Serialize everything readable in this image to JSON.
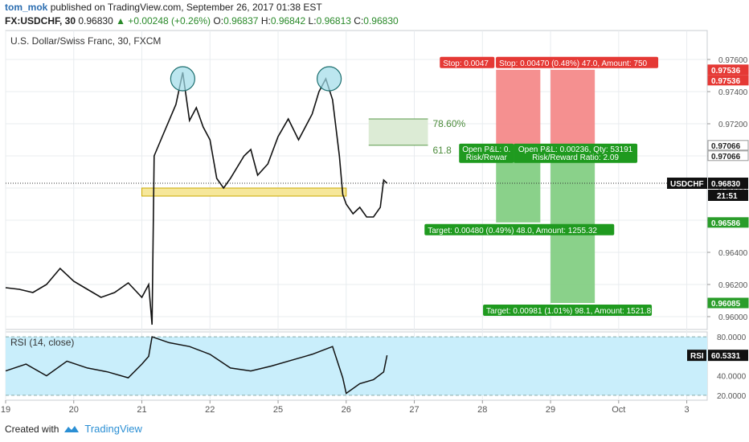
{
  "header": {
    "author": "tom_mok",
    "published_text": "published on TradingView.com, September 26, 2017 01:38 EST",
    "symbol": "FX:USDCHF, 30",
    "last": "0.96830",
    "change": "▲ +0.00248 (+0.26%)",
    "o_label": "O:",
    "o": "0.96837",
    "h_label": "H:",
    "h": "0.96842",
    "l_label": "L:",
    "l": "0.96813",
    "c_label": "C:",
    "c": "0.96830"
  },
  "footer": {
    "created_with": "Created with",
    "brand": "TradingView"
  },
  "chart_data": [
    {
      "type": "line",
      "title": "U.S. Dollar/Swiss Franc, 30, FXCM",
      "symbol_tag": "USDCHF",
      "last_price_label": "0.96830",
      "countdown": "21:51",
      "ylim": [
        0.9592,
        0.9778
      ],
      "y_ticks": [
        0.96,
        0.962,
        0.964,
        0.966,
        0.968,
        0.97,
        0.972,
        0.974,
        0.976
      ],
      "y_tick_labels": [
        "0.96000",
        "0.96200",
        "0.96400",
        "0.96600",
        "0.96800",
        "0.97000",
        "0.97200",
        "0.97400",
        "0.97600"
      ],
      "x_ticks": [
        0,
        1,
        2,
        3,
        4,
        5,
        6,
        7,
        8,
        9,
        10
      ],
      "x_tick_labels": [
        "19",
        "20",
        "21",
        "22",
        "25",
        "26",
        "27",
        "28",
        "29",
        "Oct",
        "3"
      ],
      "xlim": [
        0,
        10.3
      ],
      "grid": true,
      "series": [
        {
          "values": [
            [
              0.0,
              0.9618
            ],
            [
              0.2,
              0.9617
            ],
            [
              0.4,
              0.9615
            ],
            [
              0.6,
              0.962
            ],
            [
              0.8,
              0.963
            ],
            [
              1.0,
              0.9622
            ],
            [
              1.2,
              0.9617
            ],
            [
              1.4,
              0.9612
            ],
            [
              1.6,
              0.9615
            ],
            [
              1.8,
              0.9621
            ],
            [
              2.0,
              0.9612
            ],
            [
              2.1,
              0.962
            ],
            [
              2.15,
              0.9595
            ],
            [
              2.18,
              0.97
            ],
            [
              2.3,
              0.9712
            ],
            [
              2.5,
              0.9732
            ],
            [
              2.6,
              0.9752
            ],
            [
              2.7,
              0.9722
            ],
            [
              2.8,
              0.973
            ],
            [
              2.9,
              0.9718
            ],
            [
              3.0,
              0.971
            ],
            [
              3.1,
              0.9686
            ],
            [
              3.2,
              0.968
            ],
            [
              3.3,
              0.9686
            ],
            [
              3.5,
              0.97
            ],
            [
              3.6,
              0.9704
            ],
            [
              3.7,
              0.9688
            ],
            [
              3.85,
              0.9695
            ],
            [
              4.0,
              0.9712
            ],
            [
              4.15,
              0.9723
            ],
            [
              4.3,
              0.971
            ],
            [
              4.5,
              0.9726
            ],
            [
              4.6,
              0.974
            ],
            [
              4.7,
              0.9748
            ],
            [
              4.8,
              0.9735
            ],
            [
              4.9,
              0.97
            ],
            [
              4.95,
              0.9676
            ],
            [
              5.0,
              0.967
            ],
            [
              5.1,
              0.9664
            ],
            [
              5.2,
              0.9668
            ],
            [
              5.3,
              0.9662
            ],
            [
              5.4,
              0.9662
            ],
            [
              5.5,
              0.9668
            ],
            [
              5.55,
              0.9685
            ],
            [
              5.6,
              0.9683
            ]
          ]
        }
      ],
      "annotations": [
        {
          "kind": "peak-circle",
          "x": 2.6,
          "y": 0.9748
        },
        {
          "kind": "peak-circle",
          "x": 4.75,
          "y": 0.9748
        },
        {
          "kind": "neckline-zone",
          "x0": 2.0,
          "x1": 5.0,
          "y0": 0.9675,
          "y1": 0.968
        },
        {
          "kind": "fib-zone",
          "x0": 5.33,
          "x1": 6.2,
          "y0": 0.97066,
          "y1": 0.9723,
          "label_top": "78.60%",
          "label_bottom": "61.8"
        }
      ],
      "positions": [
        {
          "x0": 7.2,
          "x1": 7.85,
          "entry": 0.97066,
          "stop": 0.97536,
          "target": 0.96586,
          "stop_label": "Stop: 0.0047",
          "open_label": "Open P&L: 0.",
          "rr_label": "Risk/Rewar",
          "target_label": "Target: 0.00480 (0.49%) 48.0, Amount: 1255.32"
        },
        {
          "x0": 8.0,
          "x1": 8.65,
          "entry": 0.97066,
          "stop": 0.97536,
          "target": 0.96085,
          "stop_label": "Stop: 0.00470 (0.48%) 47.0, Amount: 750",
          "open_label": "Open P&L: 0.00236, Qty: 53191",
          "rr_label": "Risk/Reward Ratio: 2.09",
          "target_label": "Target: 0.00981 (1.01%) 98.1, Amount: 1521.8"
        }
      ],
      "price_tags": [
        {
          "value": "0.97536",
          "color": "#e53935"
        },
        {
          "value": "0.97536",
          "color": "#e53935"
        },
        {
          "value": "0.97066",
          "color": "#ffffff"
        },
        {
          "value": "0.97066",
          "color": "#ffffff"
        },
        {
          "value": "0.96586",
          "color": "#2a9d2a"
        },
        {
          "value": "0.96085",
          "color": "#2a9d2a"
        }
      ],
      "price_tag_values": [
        0.97536,
        0.97536,
        0.97066,
        0.97066,
        0.96586,
        0.96085
      ]
    },
    {
      "type": "line",
      "title": "RSI (14, close)",
      "last_label": "60.5331",
      "tag": "RSI",
      "ylim": [
        15,
        85
      ],
      "bands": [
        20,
        80
      ],
      "y_ticks": [
        20,
        40,
        60,
        80
      ],
      "y_tick_labels": [
        "20.0000",
        "40.0000",
        "60.0000",
        "80.0000"
      ],
      "series": [
        {
          "values": [
            [
              0.0,
              45
            ],
            [
              0.3,
              52
            ],
            [
              0.6,
              40
            ],
            [
              0.9,
              55
            ],
            [
              1.2,
              48
            ],
            [
              1.5,
              44
            ],
            [
              1.8,
              38
            ],
            [
              2.0,
              52
            ],
            [
              2.1,
              60
            ],
            [
              2.15,
              80
            ],
            [
              2.4,
              74
            ],
            [
              2.7,
              70
            ],
            [
              3.0,
              62
            ],
            [
              3.3,
              48
            ],
            [
              3.6,
              45
            ],
            [
              3.9,
              50
            ],
            [
              4.2,
              56
            ],
            [
              4.5,
              62
            ],
            [
              4.8,
              70
            ],
            [
              4.95,
              38
            ],
            [
              5.0,
              22
            ],
            [
              5.2,
              32
            ],
            [
              5.4,
              36
            ],
            [
              5.55,
              44
            ],
            [
              5.6,
              61
            ]
          ]
        }
      ]
    }
  ],
  "colors": {
    "background": "#ffffff",
    "grid": "#e8ecef",
    "stop": "#f48a8a",
    "target": "#84cf84",
    "rsi_band": "#c9eefb",
    "neck_fill": "#f6e79a",
    "fib_fill": "#dcebd5"
  }
}
